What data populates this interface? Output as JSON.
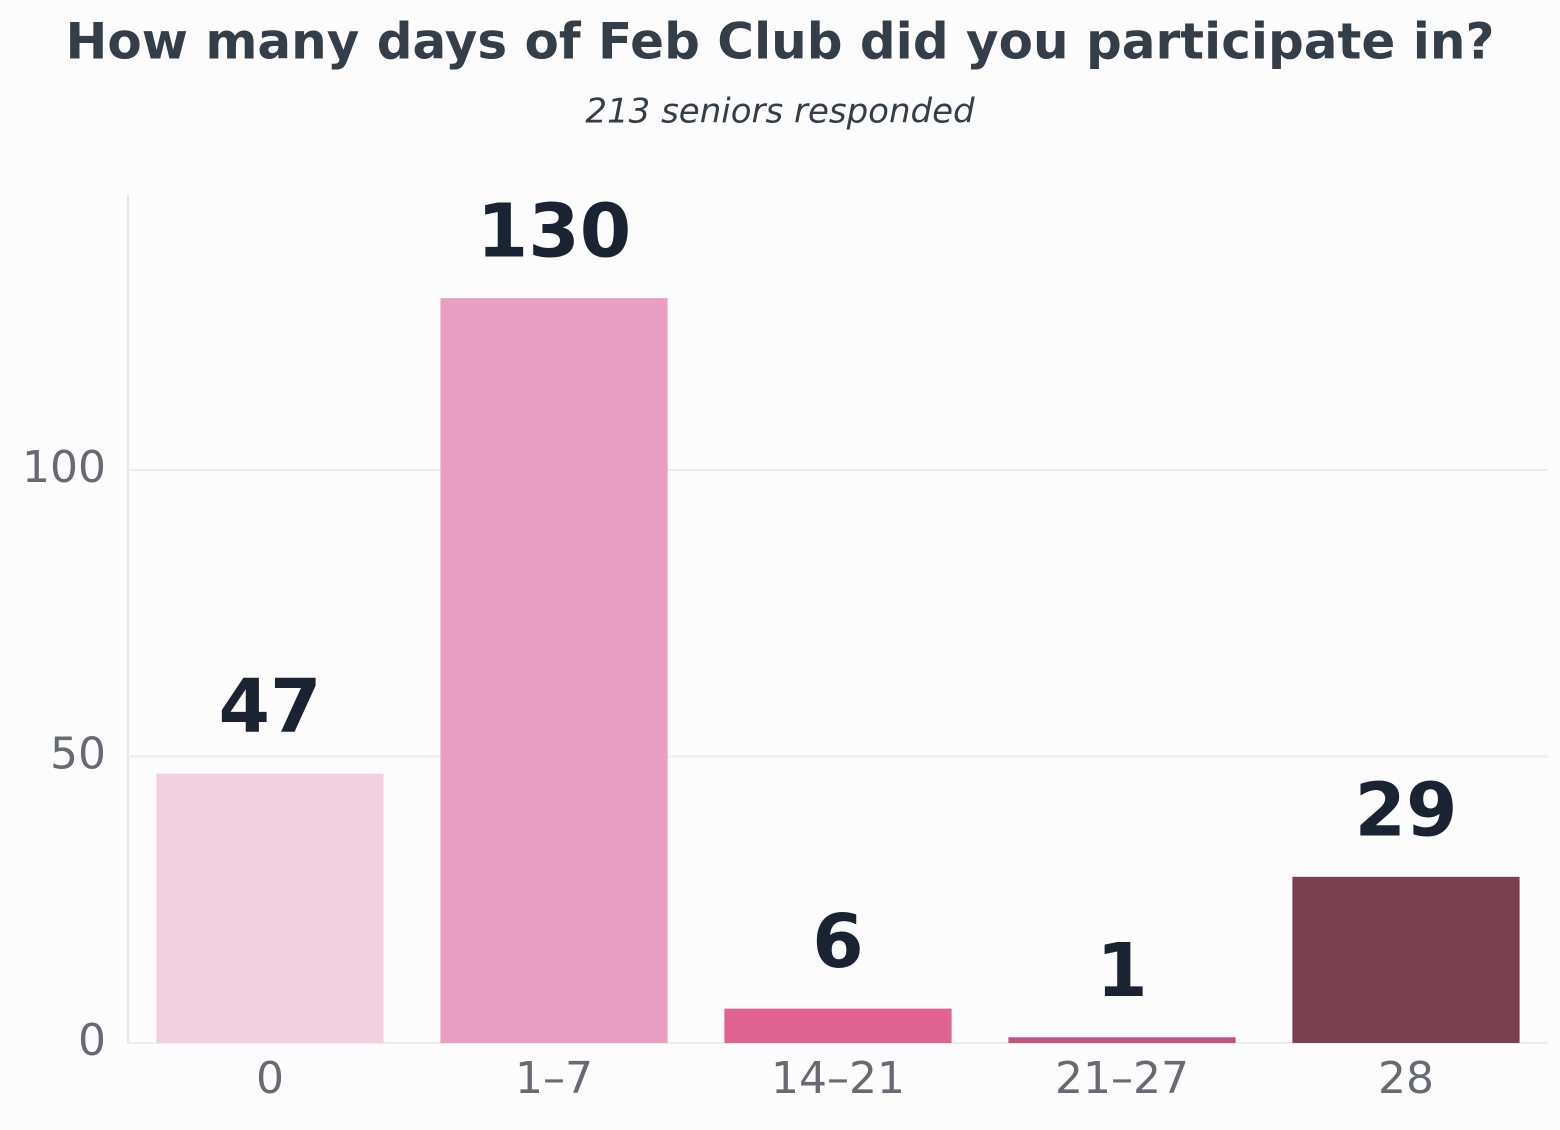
{
  "chart_data": {
    "type": "bar",
    "title": "How many days of Feb Club did you participate in?",
    "subtitle": "213 seniors responded",
    "categories": [
      "0",
      "1–7",
      "14–21",
      "21–27",
      "28"
    ],
    "values": [
      47,
      130,
      6,
      1,
      29
    ],
    "colors": [
      "#f1d0df",
      "#e89ec1",
      "#e06391",
      "#c45581",
      "#7b3f52"
    ],
    "ylim": [
      0,
      148
    ],
    "yticks": [
      0,
      50,
      100
    ],
    "grid": true
  }
}
